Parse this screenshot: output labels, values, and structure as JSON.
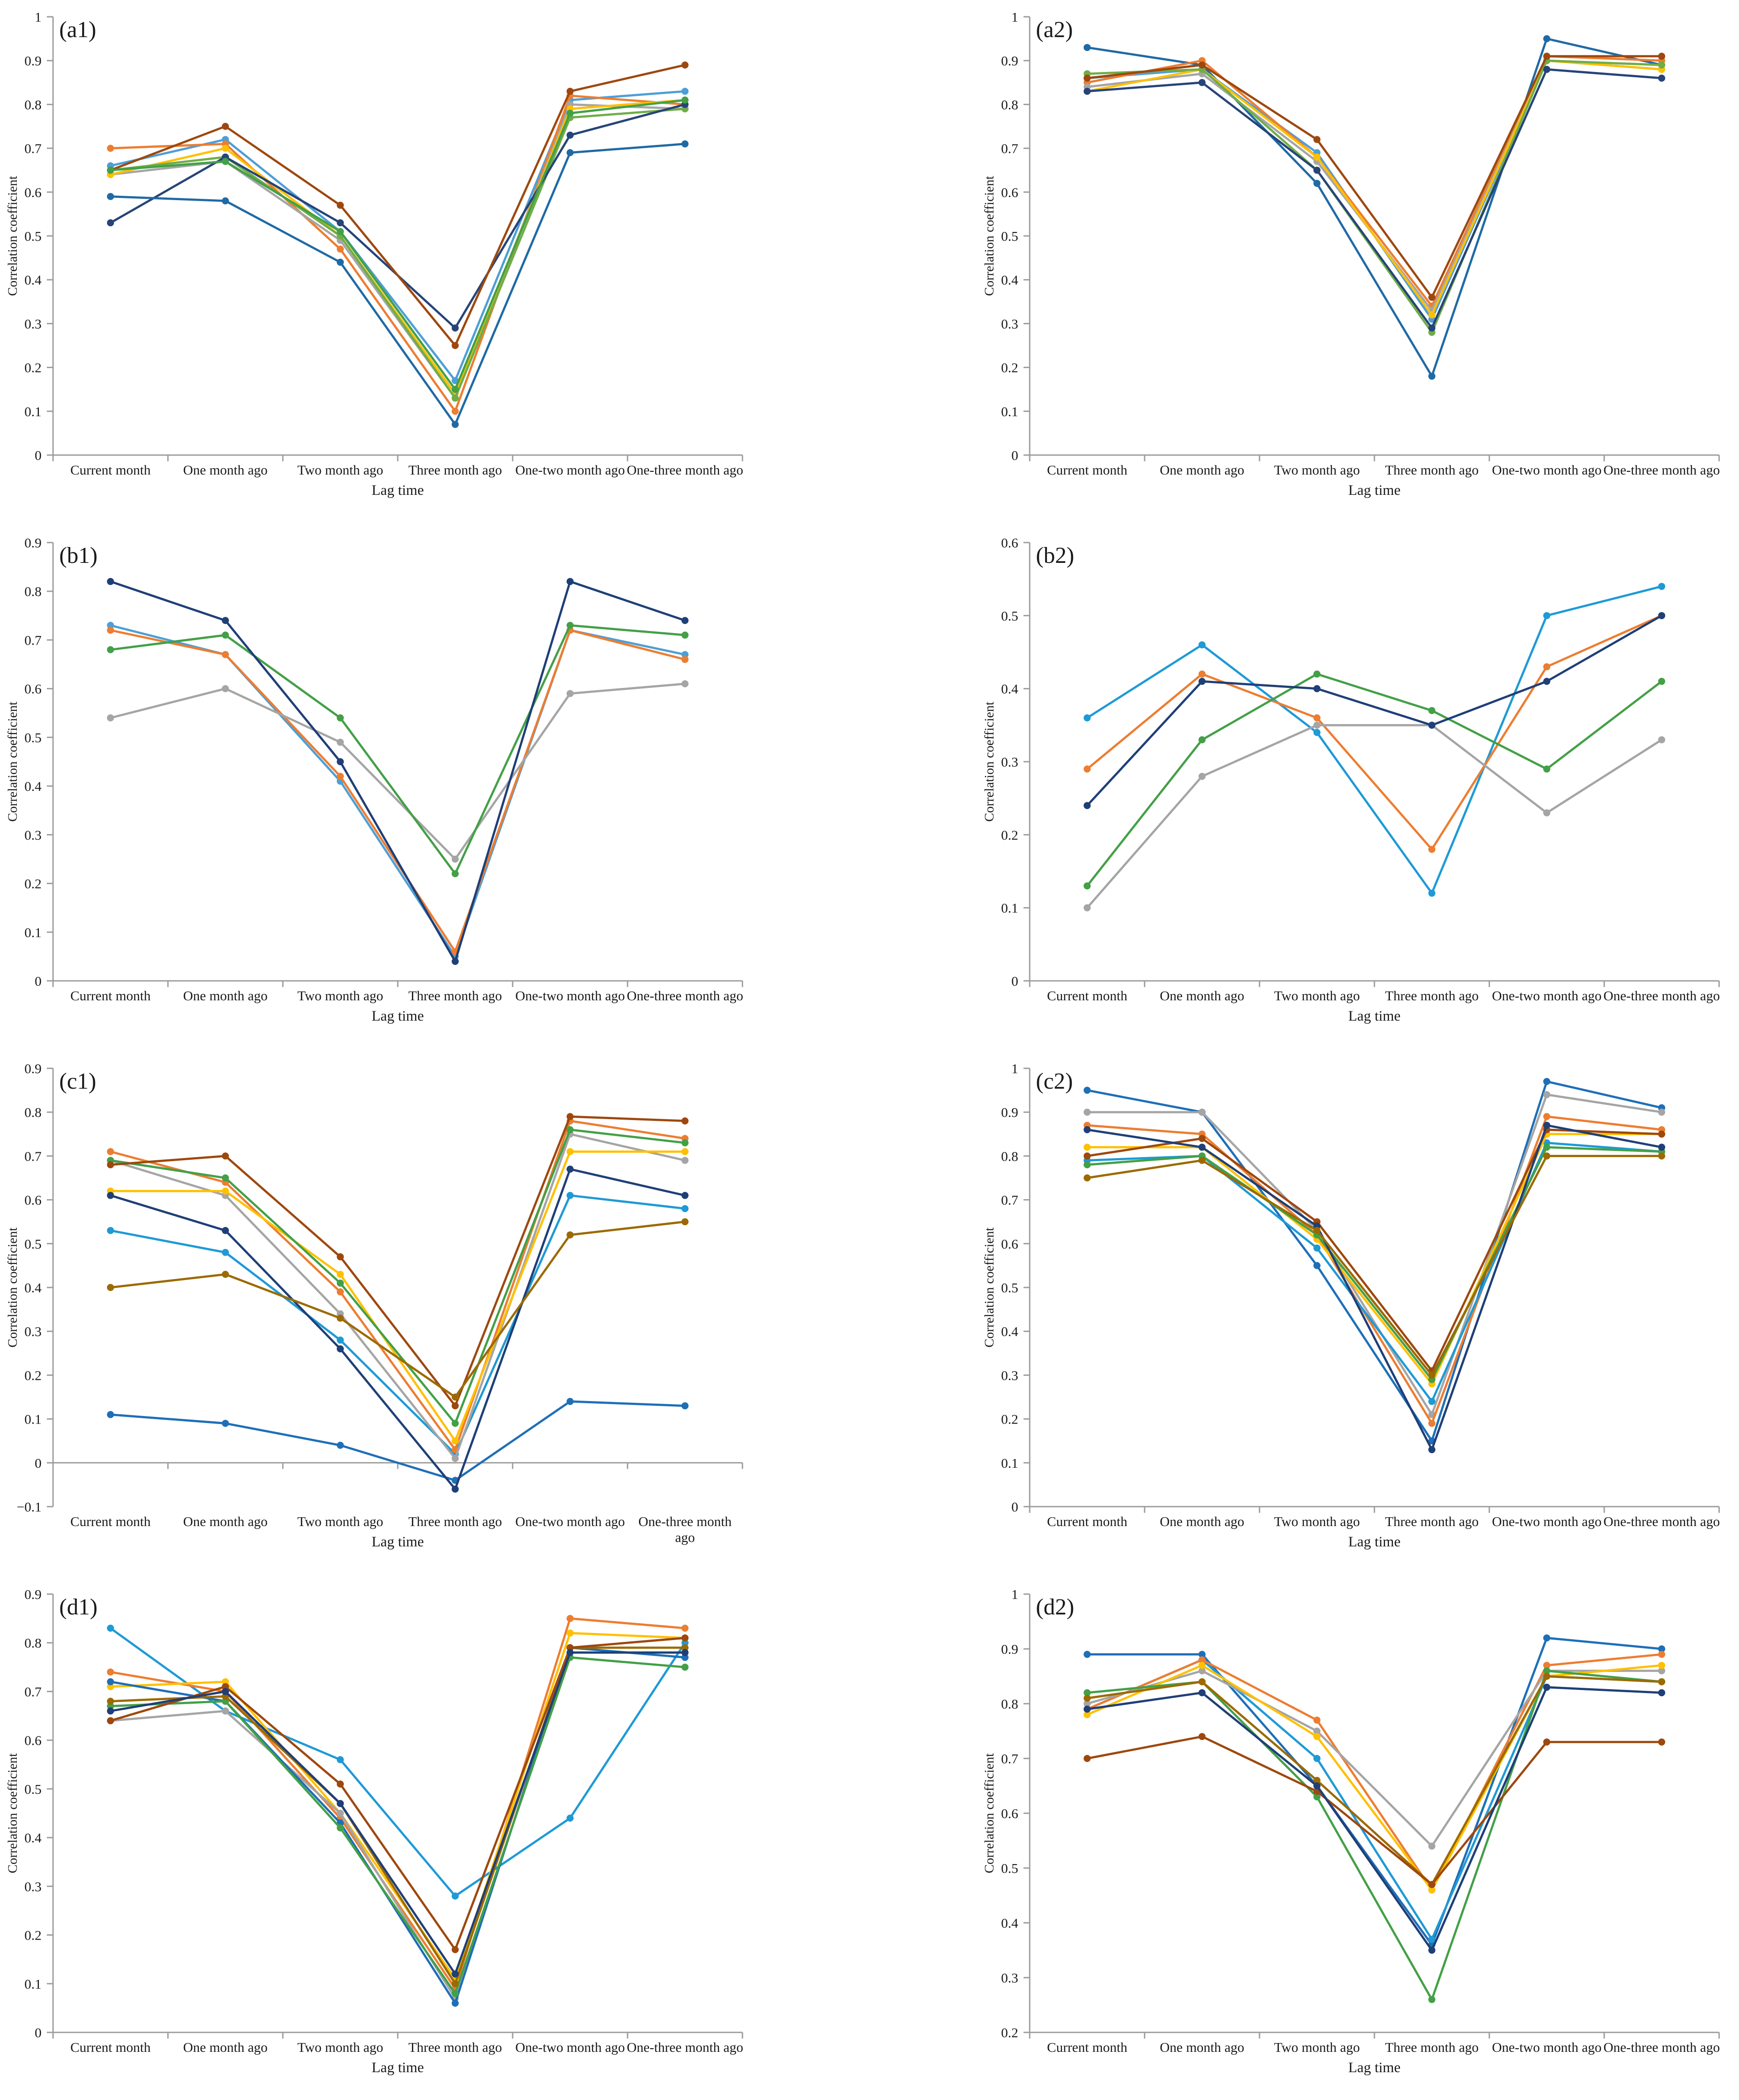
{
  "chart_data": [
    {
      "id": "a1",
      "type": "line",
      "panel_label": "(a1)",
      "title": "",
      "xlabel": "Lag time",
      "ylabel": "Correlation coefficient",
      "categories": [
        "Current month",
        "One month ago",
        "Two month ago",
        "Three month ago",
        "One-two month ago",
        "One-three month ago"
      ],
      "ylim": [
        0,
        1
      ],
      "yticks": [
        "0",
        "0.1",
        "0.2",
        "0.3",
        "0.4",
        "0.5",
        "0.6",
        "0.7",
        "0.8",
        "0.9",
        "1"
      ],
      "grid": false,
      "legend": "none",
      "series": [
        {
          "name": "",
          "color": "#4d9fd6",
          "values": [
            0.66,
            0.72,
            0.51,
            0.17,
            0.81,
            0.83
          ]
        },
        {
          "name": "",
          "color": "#ed7d31",
          "values": [
            0.7,
            0.71,
            0.47,
            0.1,
            0.82,
            0.8
          ]
        },
        {
          "name": "",
          "color": "#a5a5a5",
          "values": [
            0.64,
            0.67,
            0.49,
            0.13,
            0.8,
            0.79
          ]
        },
        {
          "name": "",
          "color": "#ffc000",
          "values": [
            0.64,
            0.7,
            0.5,
            0.14,
            0.79,
            0.81
          ]
        },
        {
          "name": "",
          "color": "#70ad47",
          "values": [
            0.65,
            0.68,
            0.5,
            0.13,
            0.77,
            0.79
          ]
        },
        {
          "name": "",
          "color": "#264478",
          "values": [
            0.53,
            0.68,
            0.53,
            0.29,
            0.73,
            0.8
          ]
        },
        {
          "name": "",
          "color": "#9e480e",
          "values": [
            0.65,
            0.75,
            0.57,
            0.25,
            0.83,
            0.89
          ]
        },
        {
          "name": "",
          "color": "#1f6aa5",
          "values": [
            0.59,
            0.58,
            0.44,
            0.07,
            0.69,
            0.71
          ]
        },
        {
          "name": "",
          "color": "#43a047",
          "values": [
            0.65,
            0.67,
            0.51,
            0.15,
            0.78,
            0.81
          ]
        }
      ]
    },
    {
      "id": "a2",
      "type": "line",
      "panel_label": "(a2)",
      "title": "",
      "xlabel": "Lag time",
      "ylabel": "Correlation coefficient",
      "categories": [
        "Current month",
        "One month ago",
        "Two month ago",
        "Three month ago",
        "One-two month ago",
        "One-three month ago"
      ],
      "ylim": [
        0,
        1
      ],
      "yticks": [
        "0",
        "0.1",
        "0.2",
        "0.3",
        "0.4",
        "0.5",
        "0.6",
        "0.7",
        "0.8",
        "0.9",
        "1"
      ],
      "grid": false,
      "legend": "none",
      "series": [
        {
          "name": "",
          "color": "#1f6aa5",
          "values": [
            0.93,
            0.89,
            0.62,
            0.18,
            0.95,
            0.89
          ]
        },
        {
          "name": "",
          "color": "#4d9fd6",
          "values": [
            0.86,
            0.88,
            0.69,
            0.31,
            0.9,
            0.89
          ]
        },
        {
          "name": "",
          "color": "#ed7d31",
          "values": [
            0.85,
            0.9,
            0.68,
            0.34,
            0.91,
            0.9
          ]
        },
        {
          "name": "",
          "color": "#a5a5a5",
          "values": [
            0.84,
            0.87,
            0.67,
            0.33,
            0.9,
            0.88
          ]
        },
        {
          "name": "",
          "color": "#ffc000",
          "values": [
            0.83,
            0.88,
            0.68,
            0.32,
            0.9,
            0.88
          ]
        },
        {
          "name": "",
          "color": "#70ad47",
          "values": [
            0.87,
            0.88,
            0.65,
            0.28,
            0.9,
            0.89
          ]
        },
        {
          "name": "",
          "color": "#9e480e",
          "values": [
            0.86,
            0.89,
            0.72,
            0.36,
            0.91,
            0.91
          ]
        },
        {
          "name": "",
          "color": "#264478",
          "values": [
            0.83,
            0.85,
            0.65,
            0.29,
            0.88,
            0.86
          ]
        }
      ]
    },
    {
      "id": "b1",
      "type": "line",
      "panel_label": "(b1)",
      "title": "",
      "xlabel": "Lag time",
      "ylabel": "Correlation coefficient",
      "categories": [
        "Current month",
        "One month ago",
        "Two month ago",
        "Three month ago",
        "One-two month ago",
        "One-three month ago"
      ],
      "ylim": [
        0,
        0.9
      ],
      "yticks": [
        "0",
        "0.1",
        "0.2",
        "0.3",
        "0.4",
        "0.5",
        "0.6",
        "0.7",
        "0.8",
        "0.9"
      ],
      "grid": false,
      "legend": "none",
      "series": [
        {
          "name": "",
          "color": "#4d9fd6",
          "values": [
            0.73,
            0.67,
            0.41,
            0.05,
            0.72,
            0.67
          ]
        },
        {
          "name": "",
          "color": "#ed7d31",
          "values": [
            0.72,
            0.67,
            0.42,
            0.06,
            0.72,
            0.66
          ]
        },
        {
          "name": "",
          "color": "#a5a5a5",
          "values": [
            0.54,
            0.6,
            0.49,
            0.25,
            0.59,
            0.61
          ]
        },
        {
          "name": "",
          "color": "#43a047",
          "values": [
            0.68,
            0.71,
            0.54,
            0.22,
            0.73,
            0.71
          ]
        },
        {
          "name": "",
          "color": "#1f3f77",
          "values": [
            0.82,
            0.74,
            0.45,
            0.04,
            0.82,
            0.74
          ]
        }
      ]
    },
    {
      "id": "b2",
      "type": "line",
      "panel_label": "(b2)",
      "title": "",
      "xlabel": "Lag time",
      "ylabel": "Correlation coefficient",
      "categories": [
        "Current month",
        "One month ago",
        "Two month ago",
        "Three month ago",
        "One-two month ago",
        "One-three month ago"
      ],
      "ylim": [
        0,
        0.6
      ],
      "yticks": [
        "0",
        "0.1",
        "0.2",
        "0.3",
        "0.4",
        "0.5",
        "0.6"
      ],
      "grid": false,
      "legend": "none",
      "series": [
        {
          "name": "",
          "color": "#1e9ad6",
          "values": [
            0.36,
            0.46,
            0.34,
            0.12,
            0.5,
            0.54
          ]
        },
        {
          "name": "",
          "color": "#ed7d31",
          "values": [
            0.29,
            0.42,
            0.36,
            0.18,
            0.43,
            0.5
          ]
        },
        {
          "name": "",
          "color": "#a5a5a5",
          "values": [
            0.1,
            0.28,
            0.35,
            0.35,
            0.23,
            0.33
          ]
        },
        {
          "name": "",
          "color": "#43a047",
          "values": [
            0.13,
            0.33,
            0.42,
            0.37,
            0.29,
            0.41
          ]
        },
        {
          "name": "",
          "color": "#1f3f77",
          "values": [
            0.24,
            0.41,
            0.4,
            0.35,
            0.41,
            0.5
          ]
        }
      ]
    },
    {
      "id": "c1",
      "type": "line",
      "panel_label": "(c1)",
      "title": "",
      "xlabel": "Lag time",
      "ylabel": "Correlation coefficient",
      "categories": [
        "Current month",
        "One month ago",
        "Two month ago",
        "Three month ago",
        "One-two month ago",
        "One-three month\nago"
      ],
      "ylim": [
        -0.1,
        0.9
      ],
      "yticks": [
        "−0.1",
        "0",
        "0.1",
        "0.2",
        "0.3",
        "0.4",
        "0.5",
        "0.6",
        "0.7",
        "0.8",
        "0.9"
      ],
      "grid": false,
      "legend": "none",
      "series": [
        {
          "name": "",
          "color": "#1e6fb8",
          "values": [
            0.11,
            0.09,
            0.04,
            -0.04,
            0.14,
            0.13
          ]
        },
        {
          "name": "",
          "color": "#1e9ad6",
          "values": [
            0.53,
            0.48,
            0.28,
            0.02,
            0.61,
            0.58
          ]
        },
        {
          "name": "",
          "color": "#ed7d31",
          "values": [
            0.71,
            0.64,
            0.39,
            0.03,
            0.78,
            0.74
          ]
        },
        {
          "name": "",
          "color": "#a5a5a5",
          "values": [
            0.69,
            0.61,
            0.34,
            0.01,
            0.75,
            0.69
          ]
        },
        {
          "name": "",
          "color": "#ffc000",
          "values": [
            0.62,
            0.62,
            0.43,
            0.05,
            0.71,
            0.71
          ]
        },
        {
          "name": "",
          "color": "#43a047",
          "values": [
            0.69,
            0.65,
            0.41,
            0.09,
            0.76,
            0.73
          ]
        },
        {
          "name": "",
          "color": "#9e480e",
          "values": [
            0.68,
            0.7,
            0.47,
            0.13,
            0.79,
            0.78
          ]
        },
        {
          "name": "",
          "color": "#1f3f77",
          "values": [
            0.61,
            0.53,
            0.26,
            -0.06,
            0.67,
            0.61
          ]
        },
        {
          "name": "",
          "color": "#9c6a00",
          "values": [
            0.4,
            0.43,
            0.33,
            0.15,
            0.52,
            0.55
          ]
        }
      ]
    },
    {
      "id": "c2",
      "type": "line",
      "panel_label": "(c2)",
      "title": "",
      "xlabel": "Lag time",
      "ylabel": "Correlation coefficient",
      "categories": [
        "Current month",
        "One month ago",
        "Two month ago",
        "Three month ago",
        "One-two month ago",
        "One-three month ago"
      ],
      "ylim": [
        0,
        1
      ],
      "yticks": [
        "0",
        "0.1",
        "0.2",
        "0.3",
        "0.4",
        "0.5",
        "0.6",
        "0.7",
        "0.8",
        "0.9",
        "1"
      ],
      "grid": false,
      "legend": "none",
      "series": [
        {
          "name": "",
          "color": "#1e6fb8",
          "values": [
            0.95,
            0.9,
            0.55,
            0.15,
            0.97,
            0.91
          ]
        },
        {
          "name": "",
          "color": "#a5a5a5",
          "values": [
            0.9,
            0.9,
            0.63,
            0.21,
            0.94,
            0.9
          ]
        },
        {
          "name": "",
          "color": "#ed7d31",
          "values": [
            0.87,
            0.85,
            0.62,
            0.19,
            0.89,
            0.86
          ]
        },
        {
          "name": "",
          "color": "#1e9ad6",
          "values": [
            0.79,
            0.8,
            0.59,
            0.24,
            0.83,
            0.81
          ]
        },
        {
          "name": "",
          "color": "#ffc000",
          "values": [
            0.82,
            0.82,
            0.61,
            0.28,
            0.85,
            0.85
          ]
        },
        {
          "name": "",
          "color": "#43a047",
          "values": [
            0.78,
            0.8,
            0.62,
            0.29,
            0.82,
            0.81
          ]
        },
        {
          "name": "",
          "color": "#9e480e",
          "values": [
            0.8,
            0.84,
            0.65,
            0.31,
            0.86,
            0.85
          ]
        },
        {
          "name": "",
          "color": "#1f3f77",
          "values": [
            0.86,
            0.82,
            0.64,
            0.13,
            0.87,
            0.82
          ]
        },
        {
          "name": "",
          "color": "#9c6a00",
          "values": [
            0.75,
            0.79,
            0.63,
            0.3,
            0.8,
            0.8
          ]
        }
      ]
    },
    {
      "id": "d1",
      "type": "line",
      "panel_label": "(d1)",
      "title": "",
      "xlabel": "Lag time",
      "ylabel": "Correlation coefficient",
      "categories": [
        "Current month",
        "One month ago",
        "Two month ago",
        "Three month ago",
        "One-two month ago",
        "One-three month ago"
      ],
      "ylim": [
        0,
        0.9
      ],
      "yticks": [
        "0",
        "0.1",
        "0.2",
        "0.3",
        "0.4",
        "0.5",
        "0.6",
        "0.7",
        "0.8",
        "0.9"
      ],
      "grid": false,
      "legend": "none",
      "series": [
        {
          "name": "",
          "color": "#1e9ad6",
          "values": [
            0.83,
            0.66,
            0.56,
            0.28,
            0.44,
            0.8
          ]
        },
        {
          "name": "",
          "color": "#ed7d31",
          "values": [
            0.74,
            0.7,
            0.44,
            0.09,
            0.85,
            0.83
          ]
        },
        {
          "name": "",
          "color": "#ffc000",
          "values": [
            0.71,
            0.72,
            0.45,
            0.11,
            0.82,
            0.81
          ]
        },
        {
          "name": "",
          "color": "#a5a5a5",
          "values": [
            0.64,
            0.66,
            0.45,
            0.07,
            0.78,
            0.78
          ]
        },
        {
          "name": "",
          "color": "#1e6fb8",
          "values": [
            0.72,
            0.68,
            0.43,
            0.06,
            0.79,
            0.77
          ]
        },
        {
          "name": "",
          "color": "#43a047",
          "values": [
            0.67,
            0.68,
            0.42,
            0.08,
            0.77,
            0.75
          ]
        },
        {
          "name": "",
          "color": "#9c6a00",
          "values": [
            0.68,
            0.69,
            0.47,
            0.1,
            0.79,
            0.79
          ]
        },
        {
          "name": "",
          "color": "#9e480e",
          "values": [
            0.64,
            0.71,
            0.51,
            0.17,
            0.79,
            0.81
          ]
        },
        {
          "name": "",
          "color": "#1f3f77",
          "values": [
            0.66,
            0.7,
            0.47,
            0.12,
            0.78,
            0.78
          ]
        }
      ]
    },
    {
      "id": "d2",
      "type": "line",
      "panel_label": "(d2)",
      "title": "",
      "xlabel": "Lag time",
      "ylabel": "Correlation coefficient",
      "categories": [
        "Current month",
        "One month ago",
        "Two month ago",
        "Three month ago",
        "One-two month ago",
        "One-three month ago"
      ],
      "ylim": [
        0.2,
        1
      ],
      "yticks": [
        "0.2",
        "0.3",
        "0.4",
        "0.5",
        "0.6",
        "0.7",
        "0.8",
        "0.9",
        "1"
      ],
      "grid": false,
      "legend": "none",
      "series": [
        {
          "name": "",
          "color": "#1e6fb8",
          "values": [
            0.89,
            0.89,
            0.65,
            0.36,
            0.92,
            0.9
          ]
        },
        {
          "name": "",
          "color": "#1e9ad6",
          "values": [
            0.79,
            0.88,
            0.7,
            0.37,
            0.85,
            0.84
          ]
        },
        {
          "name": "",
          "color": "#ed7d31",
          "values": [
            0.79,
            0.88,
            0.77,
            0.46,
            0.87,
            0.89
          ]
        },
        {
          "name": "",
          "color": "#a5a5a5",
          "values": [
            0.8,
            0.86,
            0.75,
            0.54,
            0.86,
            0.86
          ]
        },
        {
          "name": "",
          "color": "#ffc000",
          "values": [
            0.78,
            0.87,
            0.74,
            0.46,
            0.85,
            0.87
          ]
        },
        {
          "name": "",
          "color": "#43a047",
          "values": [
            0.82,
            0.84,
            0.63,
            0.26,
            0.86,
            0.84
          ]
        },
        {
          "name": "",
          "color": "#9c6a00",
          "values": [
            0.81,
            0.84,
            0.66,
            0.47,
            0.85,
            0.84
          ]
        },
        {
          "name": "",
          "color": "#9e480e",
          "values": [
            0.7,
            0.74,
            0.64,
            0.47,
            0.73,
            0.73
          ]
        },
        {
          "name": "",
          "color": "#1f3f77",
          "values": [
            0.79,
            0.82,
            0.65,
            0.35,
            0.83,
            0.82
          ]
        }
      ]
    }
  ]
}
